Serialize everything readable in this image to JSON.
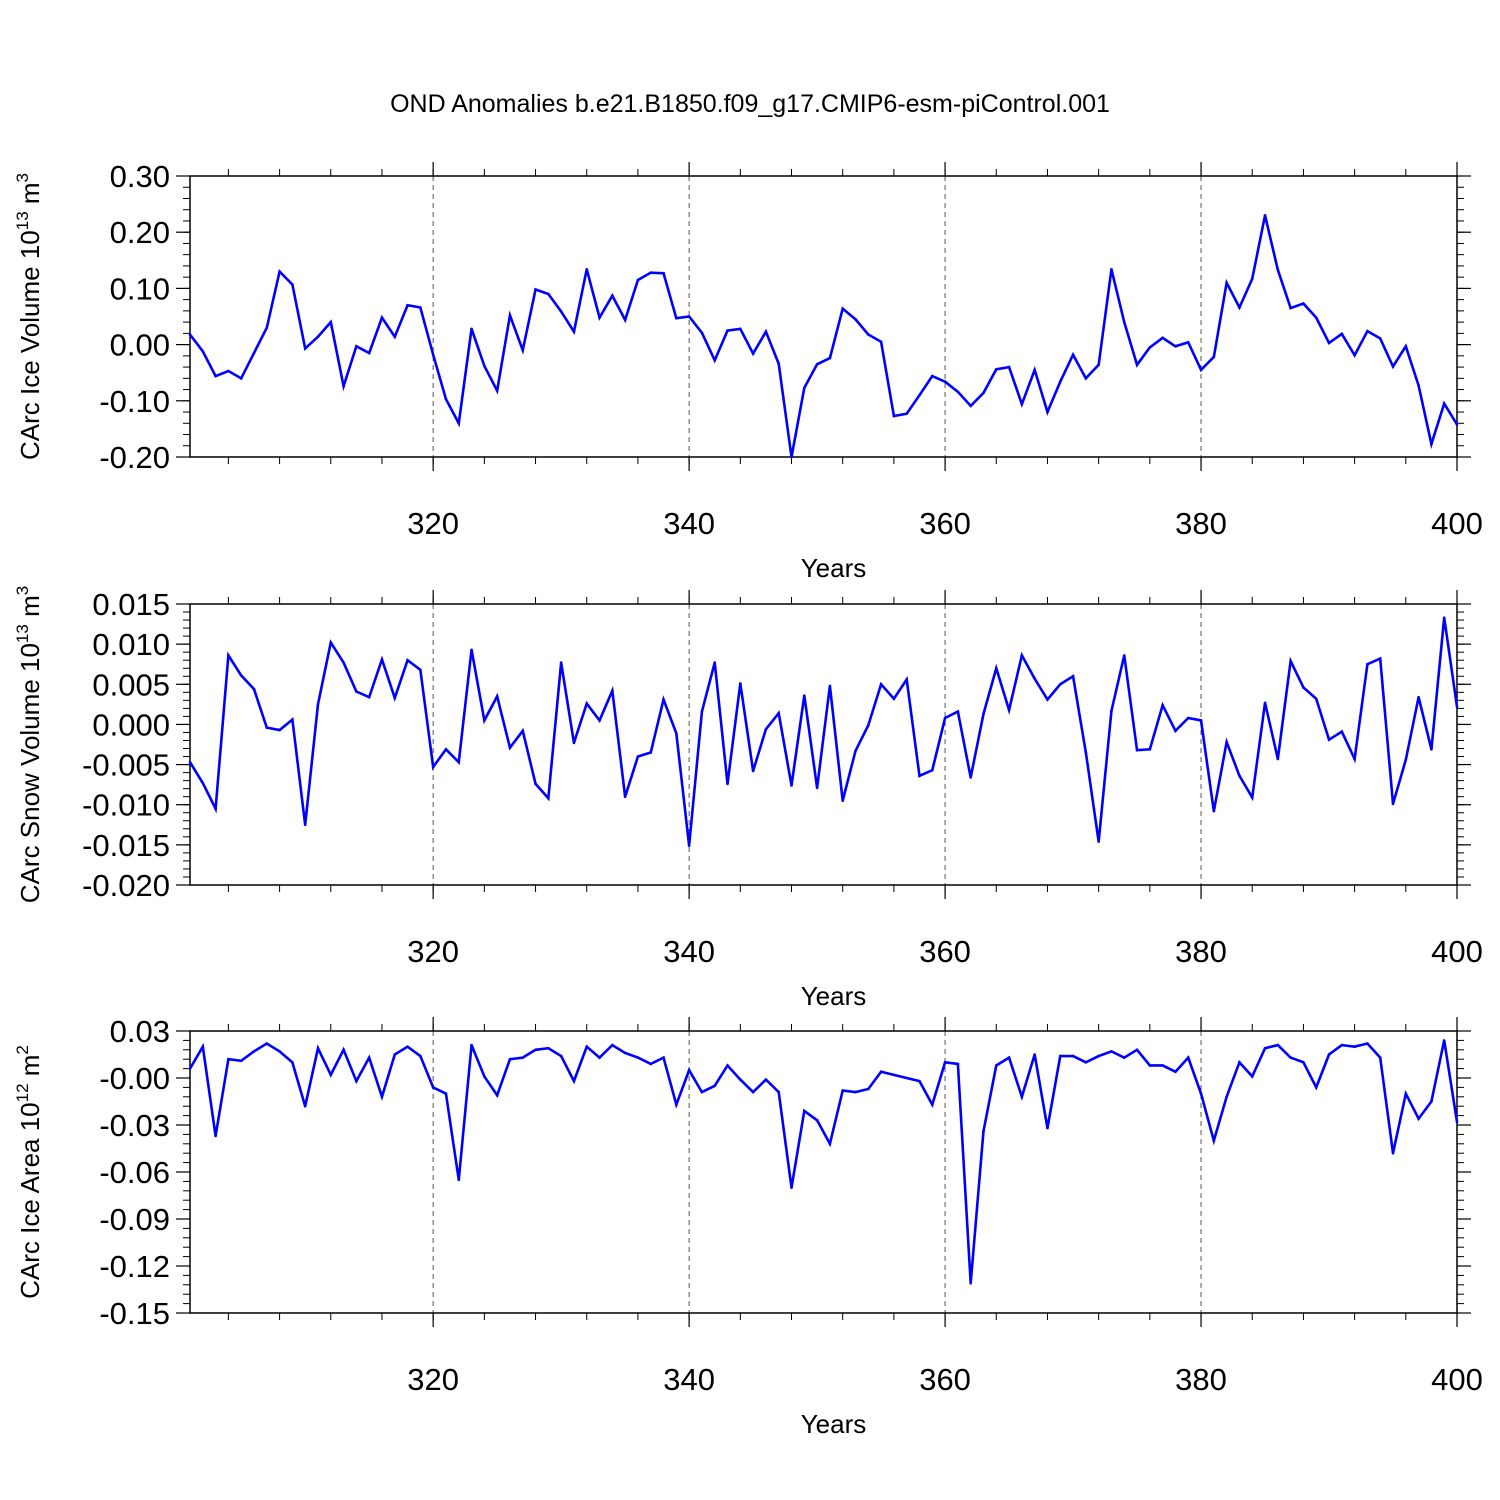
{
  "title": "OND Anomalies b.e21.B1850.f09_g17.CMIP6-esm-piControl.001",
  "line_color": "#0000ff",
  "chart_data": [
    {
      "type": "line",
      "title": "OND Anomalies b.e21.B1850.f09_g17.CMIP6-esm-piControl.001",
      "xlabel": "Years",
      "ylabel": "CArc Ice Volume 10",
      "ylabel_exp": "13",
      "ylabel_unit": " m",
      "ylabel_unit_exp": "3",
      "xlim": [
        301,
        400
      ],
      "ylim": [
        -0.2,
        0.3
      ],
      "x_ticks": [
        320,
        340,
        360,
        380,
        400
      ],
      "y_ticks": [
        -0.2,
        -0.1,
        0.0,
        0.1,
        0.2,
        0.3
      ],
      "y_tick_labels": [
        "-0.20",
        "-0.10",
        "0.00",
        "0.10",
        "0.20",
        "0.30"
      ],
      "y_minor_step": 0.02,
      "grid": "vertical dashed at major x ticks",
      "x_start": 301,
      "values": [
        0.018,
        -0.012,
        -0.056,
        -0.047,
        -0.06,
        -0.015,
        0.03,
        0.13,
        0.107,
        -0.007,
        0.014,
        0.04,
        -0.074,
        -0.003,
        -0.015,
        0.048,
        0.014,
        0.07,
        0.066,
        -0.018,
        -0.097,
        -0.14,
        0.028,
        -0.038,
        -0.082,
        0.052,
        -0.01,
        0.098,
        0.09,
        0.059,
        0.023,
        0.134,
        0.048,
        0.087,
        0.044,
        0.115,
        0.128,
        0.127,
        0.047,
        0.05,
        0.021,
        -0.028,
        0.025,
        0.028,
        -0.016,
        0.023,
        -0.034,
        -0.2,
        -0.077,
        -0.035,
        -0.024,
        0.064,
        0.045,
        0.018,
        0.005,
        -0.127,
        -0.123,
        -0.09,
        -0.056,
        -0.066,
        -0.084,
        -0.109,
        -0.086,
        -0.044,
        -0.04,
        -0.106,
        -0.045,
        -0.12,
        -0.066,
        -0.018,
        -0.06,
        -0.036,
        0.134,
        0.04,
        -0.036,
        -0.005,
        0.012,
        -0.003,
        0.004,
        -0.045,
        -0.022,
        0.11,
        0.066,
        0.117,
        0.23,
        0.133,
        0.065,
        0.073,
        0.048,
        0.003,
        0.019,
        -0.019,
        0.024,
        0.011,
        -0.039,
        -0.003,
        -0.073,
        -0.177,
        -0.105,
        -0.142
      ]
    },
    {
      "type": "line",
      "xlabel": "Years",
      "ylabel": "CArc Snow Volume 10",
      "ylabel_exp": "13",
      "ylabel_unit": " m",
      "ylabel_unit_exp": "3",
      "xlim": [
        301,
        400
      ],
      "ylim": [
        -0.02,
        0.015
      ],
      "x_ticks": [
        320,
        340,
        360,
        380,
        400
      ],
      "y_ticks": [
        -0.02,
        -0.015,
        -0.01,
        -0.005,
        0.0,
        0.005,
        0.01,
        0.015
      ],
      "y_tick_labels": [
        "-0.020",
        "-0.015",
        "-0.010",
        "-0.005",
        "0.000",
        "0.005",
        "0.010",
        "0.015"
      ],
      "y_minor_step": 0.001,
      "grid": "vertical dashed at major x ticks",
      "x_start": 301,
      "values": [
        -0.0047,
        -0.0073,
        -0.0105,
        0.0086,
        0.0061,
        0.0044,
        -0.0004,
        -0.0007,
        0.0006,
        -0.0125,
        0.0025,
        0.0102,
        0.0077,
        0.0041,
        0.0034,
        0.0081,
        0.0033,
        0.008,
        0.0068,
        -0.0053,
        -0.0031,
        -0.0047,
        0.0093,
        0.0005,
        0.0035,
        -0.0029,
        -0.0008,
        -0.0074,
        -0.0092,
        0.0077,
        -0.0023,
        0.0026,
        0.0005,
        0.0042,
        -0.009,
        -0.004,
        -0.0035,
        0.0031,
        -0.0011,
        -0.0151,
        0.0016,
        0.0077,
        -0.0074,
        0.0051,
        -0.0058,
        -0.0006,
        0.0014,
        -0.0076,
        0.0036,
        -0.0079,
        0.0048,
        -0.0095,
        -0.0033,
        -0.0001,
        0.005,
        0.0032,
        0.0056,
        -0.0064,
        -0.0057,
        0.0008,
        0.0016,
        -0.0066,
        0.0013,
        0.007,
        0.0018,
        0.0086,
        0.0057,
        0.0031,
        0.005,
        0.006,
        -0.0035,
        -0.0146,
        0.0017,
        0.0086,
        -0.0032,
        -0.0031,
        0.0024,
        -0.0008,
        0.0008,
        0.0005,
        -0.0108,
        -0.0022,
        -0.0064,
        -0.0091,
        0.0027,
        -0.0043,
        0.0079,
        0.0046,
        0.0032,
        -0.0019,
        -0.0009,
        -0.0043,
        0.0075,
        0.0082,
        -0.0099,
        -0.0044,
        0.0034,
        -0.0031,
        0.0133,
        0.0022
      ]
    },
    {
      "type": "line",
      "xlabel": "Years",
      "ylabel": "CArc Ice Area 10",
      "ylabel_exp": "12",
      "ylabel_unit": " m",
      "ylabel_unit_exp": "2",
      "xlim": [
        301,
        400
      ],
      "ylim": [
        -0.15,
        0.03
      ],
      "x_ticks": [
        320,
        340,
        360,
        380,
        400
      ],
      "y_ticks": [
        -0.15,
        -0.12,
        -0.09,
        -0.06,
        -0.03,
        0.0,
        0.03
      ],
      "y_tick_labels": [
        "-0.15",
        "-0.12",
        "-0.09",
        "-0.06",
        "-0.03",
        "-0.00",
        "0.03"
      ],
      "y_minor_step": 0.006,
      "grid": "vertical dashed at major x ticks",
      "x_start": 301,
      "values": [
        0.006,
        0.02,
        -0.037,
        0.012,
        0.011,
        0.017,
        0.022,
        0.017,
        0.01,
        -0.018,
        0.019,
        0.002,
        0.018,
        -0.002,
        0.013,
        -0.012,
        0.015,
        0.02,
        0.014,
        -0.006,
        -0.01,
        -0.065,
        0.021,
        0.001,
        -0.011,
        0.012,
        0.013,
        0.018,
        0.019,
        0.014,
        -0.002,
        0.02,
        0.013,
        0.021,
        0.016,
        0.013,
        0.009,
        0.013,
        -0.017,
        0.005,
        -0.009,
        -0.005,
        0.008,
        -0.001,
        -0.009,
        -0.001,
        -0.009,
        -0.07,
        -0.021,
        -0.027,
        -0.042,
        -0.008,
        -0.009,
        -0.007,
        0.004,
        0.002,
        0.0,
        -0.002,
        -0.017,
        0.01,
        0.009,
        -0.131,
        -0.034,
        0.008,
        0.013,
        -0.012,
        0.015,
        -0.032,
        0.014,
        0.014,
        0.01,
        0.014,
        0.017,
        0.013,
        0.018,
        0.008,
        0.008,
        0.004,
        0.013,
        -0.01,
        -0.04,
        -0.012,
        0.01,
        0.001,
        0.019,
        0.021,
        0.013,
        0.01,
        -0.006,
        0.015,
        0.021,
        0.02,
        0.022,
        0.013,
        -0.048,
        -0.01,
        -0.026,
        -0.015,
        0.024,
        -0.028
      ]
    }
  ]
}
